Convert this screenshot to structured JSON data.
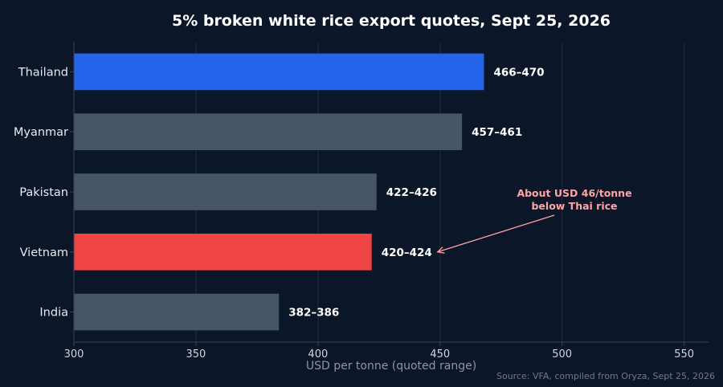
{
  "chart_data": {
    "type": "bar",
    "orientation": "horizontal",
    "title": "5% broken white rice export quotes, Sept 25, 2026",
    "xlabel": "USD per tonne (quoted range)",
    "ylabel": "",
    "xlim": [
      300,
      560
    ],
    "xticks": [
      "300",
      "350",
      "400",
      "450",
      "500",
      "550"
    ],
    "grid": "vertical",
    "categories": [
      "Thailand",
      "Myanmar",
      "Pakistan",
      "Vietnam",
      "India"
    ],
    "values": [
      468,
      459,
      424,
      422,
      384
    ],
    "value_labels": [
      "466–470",
      "457–461",
      "422–426",
      "420–424",
      "382–386"
    ],
    "colors": [
      "#2563eb",
      "#475569",
      "#475569",
      "#ef4444",
      "#475569"
    ],
    "annotation": {
      "lines": [
        "About USD 46/tonne",
        "below Thai rice"
      ],
      "color": "#fca5a5",
      "points_to": "Vietnam",
      "arrow_target_x": 450
    },
    "source": "Source: VFA, compiled from Oryza, Sept 25, 2026"
  }
}
